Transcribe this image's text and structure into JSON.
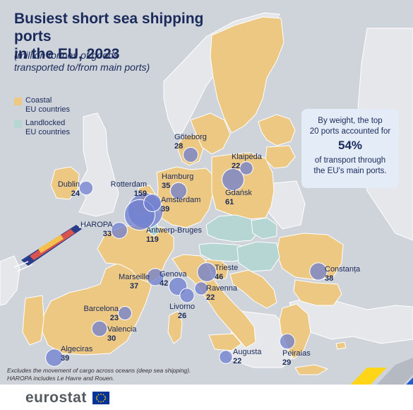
{
  "title_line1": "Busiest short sea shipping ports",
  "title_line2": "in the EU, 2023",
  "subtitle_line1": "(million tonnes of goods",
  "subtitle_line2": "transported to/from main ports)",
  "legend": [
    {
      "line1": "Coastal",
      "line2": "EU countries",
      "color": "#edc883"
    },
    {
      "line1": "Landlocked",
      "line2": "EU countries",
      "color": "#b5d6d2"
    }
  ],
  "callout": {
    "line1": "By weight, the top",
    "line2": "20 ports accounted for",
    "percent": "54%",
    "line3": "of transport through",
    "line4": "the EU's main ports."
  },
  "ports": [
    {
      "name": "Göteborg",
      "value": "28",
      "tonnes": 28
    },
    {
      "name": "Klaipėda",
      "value": "22",
      "tonnes": 22
    },
    {
      "name": "Gdańsk",
      "value": "61",
      "tonnes": 61
    },
    {
      "name": "Hamburg",
      "value": "35",
      "tonnes": 35
    },
    {
      "name": "Dublin",
      "value": "24",
      "tonnes": 24
    },
    {
      "name": "Rotterdam",
      "value": "159",
      "tonnes": 159
    },
    {
      "name": "Amsterdam",
      "value": "39",
      "tonnes": 39
    },
    {
      "name": "HAROPA",
      "value": "33",
      "tonnes": 33
    },
    {
      "name": "Antwerp-Bruges",
      "value": "119",
      "tonnes": 119
    },
    {
      "name": "Trieste",
      "value": "46",
      "tonnes": 46
    },
    {
      "name": "Marseille",
      "value": "37",
      "tonnes": 37
    },
    {
      "name": "Genova",
      "value": "42",
      "tonnes": 42
    },
    {
      "name": "Ravenna",
      "value": "22",
      "tonnes": 22
    },
    {
      "name": "Livorno",
      "value": "26",
      "tonnes": 26
    },
    {
      "name": "Constanța",
      "value": "38",
      "tonnes": 38
    },
    {
      "name": "Barcelona",
      "value": "23",
      "tonnes": 23
    },
    {
      "name": "Valencia",
      "value": "30",
      "tonnes": 30
    },
    {
      "name": "Algeciras",
      "value": "39",
      "tonnes": 39
    },
    {
      "name": "Augusta",
      "value": "22",
      "tonnes": 22
    },
    {
      "name": "Peiraias",
      "value": "29",
      "tonnes": 29
    }
  ],
  "footnote_line1": "Excludes the movement of cargo across oceans (deep sea shipping).",
  "footnote_line2": "HAROPA includes Le Havre and Rouen.",
  "logo": "eurostat",
  "colors": {
    "sea": "#cfd3da",
    "non_eu": "#e6e7ea",
    "coastal": "#edc883",
    "landlocked": "#b5d6d2",
    "bubble": "#6f7fd0",
    "text": "#1a2a5a",
    "eu_flag": "#003399",
    "accent_yellow": "#ffd617",
    "accent_blue": "#1e5fd6"
  }
}
